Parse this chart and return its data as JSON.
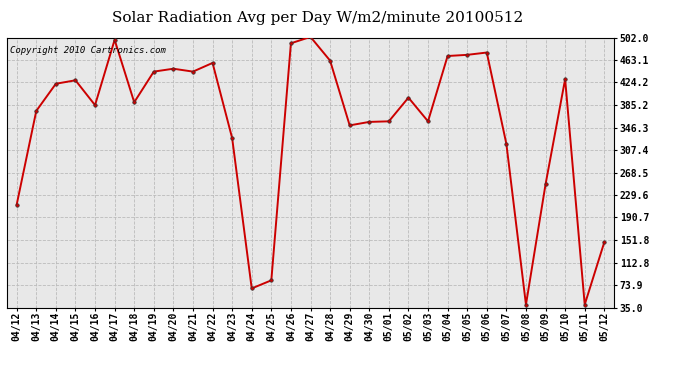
{
  "title": "Solar Radiation Avg per Day W/m2/minute 20100512",
  "copyright": "Copyright 2010 Cartronics.com",
  "labels": [
    "04/12",
    "04/13",
    "04/14",
    "04/15",
    "04/16",
    "04/17",
    "04/18",
    "04/19",
    "04/20",
    "04/21",
    "04/22",
    "04/23",
    "04/24",
    "04/25",
    "04/26",
    "04/27",
    "04/28",
    "04/29",
    "04/30",
    "05/01",
    "05/02",
    "05/03",
    "05/04",
    "05/05",
    "05/06",
    "05/07",
    "05/08",
    "05/09",
    "05/10",
    "05/11",
    "05/12"
  ],
  "values": [
    213.0,
    375.0,
    422.0,
    428.0,
    385.0,
    498.0,
    390.0,
    443.0,
    448.0,
    443.0,
    458.0,
    328.0,
    68.0,
    82.0,
    492.0,
    503.0,
    462.0,
    350.0,
    356.0,
    357.0,
    398.0,
    357.0,
    470.0,
    472.0,
    476.0,
    318.0,
    40.0,
    248.0,
    430.0,
    40.0,
    148.0
  ],
  "line_color": "#cc0000",
  "marker": "o",
  "marker_size": 3,
  "ylim": [
    35.0,
    502.0
  ],
  "yticks": [
    35.0,
    73.9,
    112.8,
    151.8,
    190.7,
    229.6,
    268.5,
    307.4,
    346.3,
    385.2,
    424.2,
    463.1,
    502.0
  ],
  "bg_color": "#e8e8e8",
  "grid_color": "#bbbbbb",
  "title_fontsize": 11,
  "tick_fontsize": 7,
  "copyright_fontsize": 6.5
}
